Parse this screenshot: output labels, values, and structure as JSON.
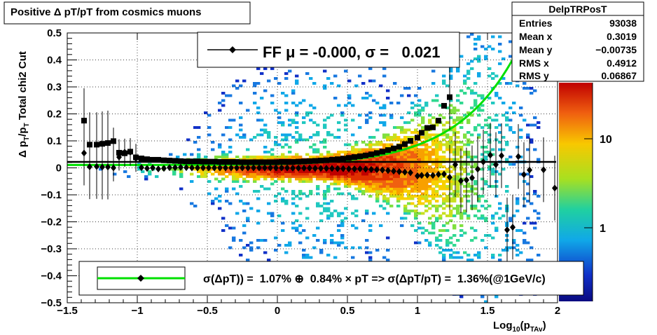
{
  "chart_data": {
    "type": "scatter",
    "title": "Positive Δ pT/pT from cosmics muons",
    "xlabel": "Log10(pTAv)",
    "ylabel": "Δ pT/pT  Total chi2 Cut",
    "xlim": [
      -1.5,
      2.0
    ],
    "ylim": [
      -0.5,
      0.5
    ],
    "x_ticks": [
      "−1.5",
      "−1",
      "−0.5",
      "0",
      "0.5",
      "1",
      "1.5",
      "2"
    ],
    "y_ticks": [
      "−0.5",
      "−0.4",
      "−0.3",
      "−0.2",
      "−0.1",
      "0",
      "0.1",
      "0.2",
      "0.3",
      "0.4",
      "0.5"
    ],
    "log_z": true,
    "z_ticks": [
      "1",
      "10"
    ],
    "grid": true,
    "stats_box": {
      "title": "DelpTRPosT",
      "rows": [
        {
          "label": "Entries",
          "value": "93038"
        },
        {
          "label": "Mean x",
          "value": "0.3019"
        },
        {
          "label": "Mean y",
          "value": "−0.00735"
        },
        {
          "label": "RMS x",
          "value": "0.4912"
        },
        {
          "label": "RMS y",
          "value": "0.06867"
        }
      ]
    },
    "legend_top": "FF μ = -0.000, σ =   0.021",
    "legend_bottom": "σ(ΔpT)) =  1.07% ⊕  0.84% × pT => σ(ΔpT/pT) =  1.36%(@1GeV/c)",
    "fit": {
      "sigma0": 0.0107,
      "sigma1": 0.0084
    },
    "series": [
      {
        "marker": "square",
        "points": [
          [
            -1.38,
            0.175
          ],
          [
            -1.34,
            0.086
          ],
          [
            -1.29,
            0.086
          ],
          [
            -1.25,
            0.089
          ],
          [
            -1.21,
            0.092
          ],
          [
            -1.17,
            0.099
          ],
          [
            -1.13,
            0.056
          ],
          [
            -1.09,
            0.054
          ],
          [
            -1.05,
            0.06
          ],
          [
            -1.01,
            0.039
          ],
          [
            -0.97,
            0.035
          ],
          [
            -0.93,
            0.032
          ],
          [
            -0.89,
            0.03
          ],
          [
            -0.85,
            0.03
          ],
          [
            -0.81,
            0.028
          ],
          [
            -0.77,
            0.027
          ],
          [
            -0.73,
            0.026
          ],
          [
            -0.69,
            0.025
          ],
          [
            -0.65,
            0.024
          ],
          [
            -0.61,
            0.024
          ],
          [
            -0.57,
            0.024
          ],
          [
            -0.53,
            0.023
          ],
          [
            -0.49,
            0.023
          ],
          [
            -0.45,
            0.023
          ],
          [
            -0.41,
            0.022
          ],
          [
            -0.37,
            0.022
          ],
          [
            -0.33,
            0.022
          ],
          [
            -0.29,
            0.022
          ],
          [
            -0.25,
            0.021
          ],
          [
            -0.21,
            0.021
          ],
          [
            -0.17,
            0.021
          ],
          [
            -0.13,
            0.021
          ],
          [
            -0.09,
            0.021
          ],
          [
            -0.05,
            0.021
          ],
          [
            -0.01,
            0.021
          ],
          [
            0.03,
            0.022
          ],
          [
            0.07,
            0.022
          ],
          [
            0.11,
            0.022
          ],
          [
            0.15,
            0.023
          ],
          [
            0.19,
            0.024
          ],
          [
            0.23,
            0.025
          ],
          [
            0.27,
            0.026
          ],
          [
            0.31,
            0.027
          ],
          [
            0.35,
            0.028
          ],
          [
            0.39,
            0.03
          ],
          [
            0.43,
            0.032
          ],
          [
            0.47,
            0.034
          ],
          [
            0.51,
            0.037
          ],
          [
            0.55,
            0.04
          ],
          [
            0.59,
            0.043
          ],
          [
            0.63,
            0.046
          ],
          [
            0.67,
            0.05
          ],
          [
            0.71,
            0.055
          ],
          [
            0.75,
            0.06
          ],
          [
            0.79,
            0.066
          ],
          [
            0.83,
            0.072
          ],
          [
            0.87,
            0.078
          ],
          [
            0.91,
            0.088
          ],
          [
            0.95,
            0.1
          ],
          [
            1.0,
            0.112
          ],
          [
            1.03,
            0.13
          ],
          [
            1.07,
            0.148
          ],
          [
            1.11,
            0.15
          ],
          [
            1.15,
            0.175
          ],
          [
            1.19,
            0.23
          ],
          [
            1.23,
            0.262
          ]
        ]
      },
      {
        "marker": "diamond",
        "points": [
          [
            -1.38,
            0.055
          ],
          [
            -1.34,
            0.004
          ],
          [
            -1.29,
            0.005
          ],
          [
            -1.25,
            0.003
          ],
          [
            -1.21,
            0.003
          ],
          [
            -1.17,
            0.0
          ],
          [
            -1.13,
            0.04
          ],
          [
            -1.09,
            0.058
          ],
          [
            -1.05,
            0.058
          ],
          [
            -1.01,
            0.035
          ],
          [
            -0.97,
            0.001
          ],
          [
            -0.93,
            -0.002
          ],
          [
            -0.89,
            0.0
          ],
          [
            -0.85,
            -0.004
          ],
          [
            -0.81,
            -0.002
          ],
          [
            -0.77,
            0.001
          ],
          [
            -0.73,
            0.001
          ],
          [
            -0.69,
            0.002
          ],
          [
            -0.65,
            0.001
          ],
          [
            -0.61,
            0.0
          ],
          [
            -0.57,
            0.0
          ],
          [
            -0.53,
            0.0
          ],
          [
            -0.49,
            0.0
          ],
          [
            -0.45,
            0.0
          ],
          [
            -0.41,
            0.0
          ],
          [
            -0.37,
            0.0
          ],
          [
            -0.33,
            0.0
          ],
          [
            -0.29,
            0.0
          ],
          [
            -0.25,
            0.0
          ],
          [
            -0.21,
            0.0
          ],
          [
            -0.17,
            0.0
          ],
          [
            -0.13,
            0.0
          ],
          [
            -0.09,
            0.0
          ],
          [
            -0.05,
            0.0
          ],
          [
            -0.01,
            0.0
          ],
          [
            0.03,
            0.0
          ],
          [
            0.07,
            0.0
          ],
          [
            0.11,
            -0.001
          ],
          [
            0.15,
            -0.001
          ],
          [
            0.19,
            -0.001
          ],
          [
            0.23,
            -0.001
          ],
          [
            0.27,
            -0.002
          ],
          [
            0.31,
            -0.002
          ],
          [
            0.35,
            -0.002
          ],
          [
            0.39,
            -0.002
          ],
          [
            0.43,
            -0.003
          ],
          [
            0.47,
            -0.003
          ],
          [
            0.51,
            -0.004
          ],
          [
            0.55,
            -0.004
          ],
          [
            0.59,
            -0.004
          ],
          [
            0.63,
            -0.005
          ],
          [
            0.67,
            -0.006
          ],
          [
            0.71,
            -0.007
          ],
          [
            0.75,
            -0.008
          ],
          [
            0.79,
            -0.01
          ],
          [
            0.83,
            -0.012
          ],
          [
            0.87,
            -0.014
          ],
          [
            0.91,
            -0.016
          ],
          [
            0.95,
            -0.018
          ],
          [
            1.0,
            -0.03
          ],
          [
            1.03,
            -0.028
          ],
          [
            1.07,
            -0.027
          ],
          [
            1.11,
            -0.028
          ],
          [
            1.15,
            -0.024
          ],
          [
            1.19,
            -0.023
          ],
          [
            1.23,
            -0.035
          ],
          [
            1.27,
            0.012
          ],
          [
            1.31,
            -0.048
          ],
          [
            1.35,
            -0.045
          ],
          [
            1.39,
            -0.037
          ],
          [
            1.43,
            -0.005
          ],
          [
            1.47,
            0.022
          ],
          [
            1.52,
            0.047
          ],
          [
            1.56,
            0.012
          ],
          [
            1.6,
            0.045
          ],
          [
            1.64,
            -0.23
          ],
          [
            1.68,
            -0.22
          ],
          [
            1.72,
            0.042
          ],
          [
            1.76,
            -0.025
          ],
          [
            1.8,
            -0.008
          ],
          [
            1.9,
            -0.007
          ],
          [
            1.98,
            -0.075
          ]
        ]
      }
    ]
  }
}
